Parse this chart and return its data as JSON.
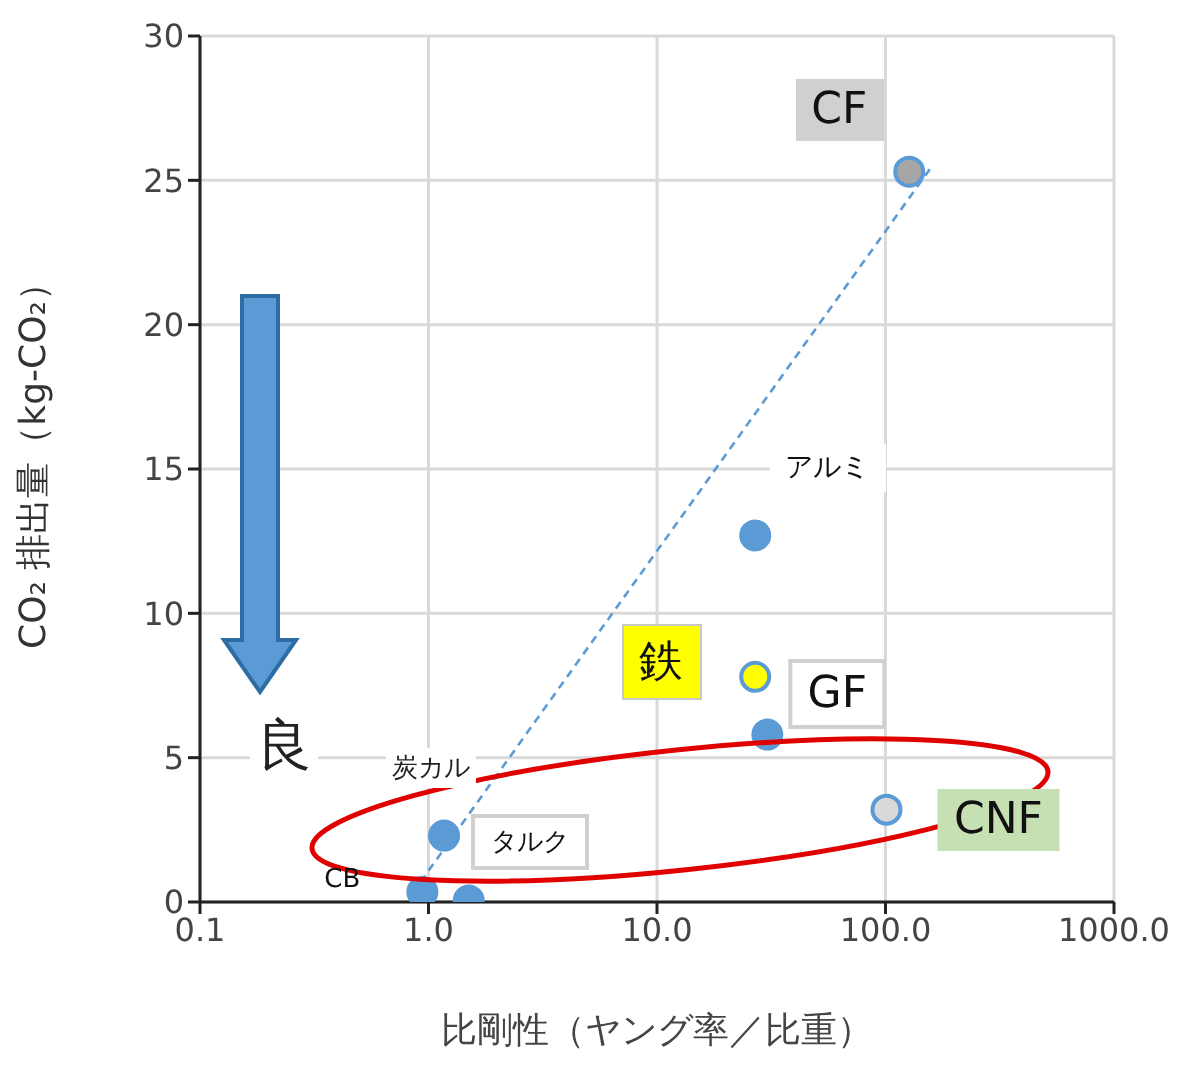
{
  "chart_data": {
    "type": "scatter",
    "xlabel": "比剛性（ヤング率／比重）",
    "ylabel": "CO₂ 排出量（kg-CO₂）",
    "log": "x",
    "grid": true,
    "marker": "circle",
    "xlim": [
      0.1,
      1000
    ],
    "xticks": [
      {
        "value": 0.1,
        "label": "0.1"
      },
      {
        "value": 1,
        "label": "1.0"
      },
      {
        "value": 10,
        "label": "10.0"
      },
      {
        "value": 100,
        "label": "100.0"
      },
      {
        "value": 1000,
        "label": "1000.0"
      }
    ],
    "ylim": [
      0,
      30
    ],
    "yticks": [
      0,
      5,
      10,
      15,
      20,
      25,
      30
    ],
    "series": [
      {
        "color": "#5b9bd5",
        "x": [
          127,
          26.9,
          26.9,
          30.4,
          101,
          1.17,
          0.94,
          1.5
        ],
        "values": [
          25.3,
          12.7,
          7.8,
          5.8,
          3.2,
          2.3,
          0.35,
          0.05
        ],
        "colors": [
          "#a6a6a6",
          "#5b9bd5",
          "#ffff00",
          "#5b9bd5",
          "#d9d9d9",
          "#5b9bd5",
          "#5b9bd5",
          "#5b9bd5"
        ]
      },
      {
        "type": "line",
        "color": "#5b9bd5",
        "line_style": "dashed",
        "marker": "none",
        "x": [
          0.85,
          160
        ],
        "values": [
          0.3,
          25.5
        ]
      }
    ],
    "annotations": [
      {
        "text": "CF",
        "x": 127,
        "y": 25.3
      },
      {
        "text": "アルミ",
        "x": 26.9,
        "y": 12.7
      },
      {
        "text": "鉄",
        "x": 26.9,
        "y": 7.8
      },
      {
        "text": "GF",
        "x": 30.4,
        "y": 5.8
      },
      {
        "text": "CNF",
        "x": 101,
        "y": 3.2
      },
      {
        "text": "タルク",
        "x": 1.17,
        "y": 2.3
      },
      {
        "text": "CB",
        "x": 0.94,
        "y": 0.35
      },
      "炭カル",
      "良"
    ]
  }
}
